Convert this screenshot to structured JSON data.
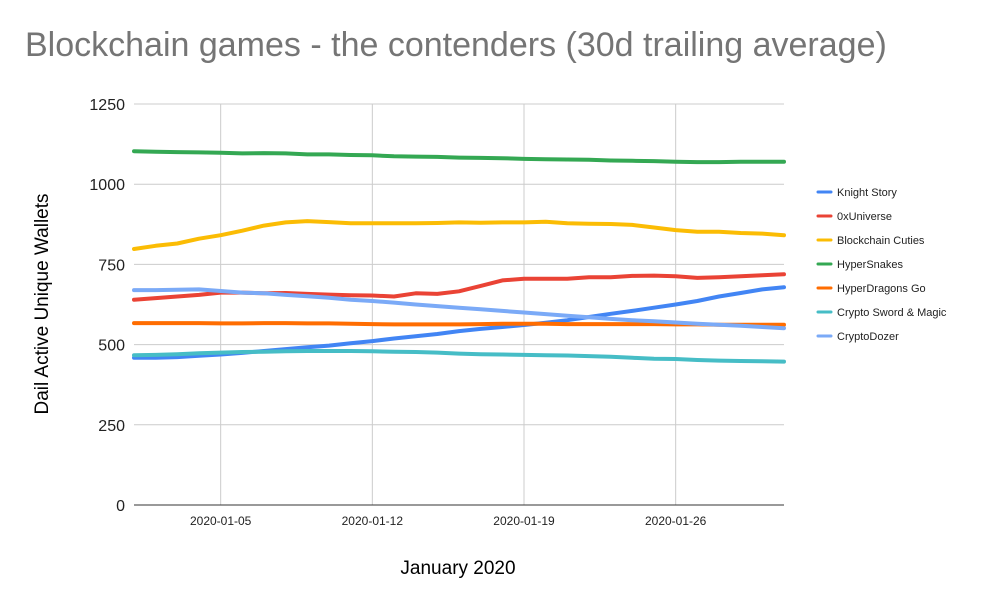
{
  "chart_data": {
    "type": "line",
    "title": "Blockchain games - the contenders (30d trailing average)",
    "xlabel": "January 2020",
    "ylabel": "Dail Active Unique Wallets",
    "ylim": [
      0,
      1250
    ],
    "yticks": [
      0,
      250,
      500,
      750,
      1000,
      1250
    ],
    "xlim": [
      "2020-01-01",
      "2020-01-31"
    ],
    "xticks": [
      "2020-01-05",
      "2020-01-12",
      "2020-01-19",
      "2020-01-26"
    ],
    "grid": true,
    "legend_position": "right",
    "x": [
      "2020-01-01",
      "2020-01-02",
      "2020-01-03",
      "2020-01-04",
      "2020-01-05",
      "2020-01-06",
      "2020-01-07",
      "2020-01-08",
      "2020-01-09",
      "2020-01-10",
      "2020-01-11",
      "2020-01-12",
      "2020-01-13",
      "2020-01-14",
      "2020-01-15",
      "2020-01-16",
      "2020-01-17",
      "2020-01-18",
      "2020-01-19",
      "2020-01-20",
      "2020-01-21",
      "2020-01-22",
      "2020-01-23",
      "2020-01-24",
      "2020-01-25",
      "2020-01-26",
      "2020-01-27",
      "2020-01-28",
      "2020-01-29",
      "2020-01-30",
      "2020-01-31"
    ],
    "series": [
      {
        "name": "Knight Story",
        "color": "#4285f4",
        "values": [
          459,
          459,
          461,
          465,
          469,
          474,
          480,
          486,
          492,
          497,
          504,
          511,
          519,
          526,
          533,
          542,
          549,
          555,
          561,
          568,
          576,
          586,
          596,
          605,
          615,
          625,
          636,
          650,
          661,
          672,
          679
        ]
      },
      {
        "name": "0xUniverse",
        "color": "#ea4335",
        "values": [
          640,
          645,
          650,
          655,
          662,
          662,
          660,
          661,
          658,
          656,
          654,
          653,
          650,
          660,
          658,
          666,
          683,
          700,
          705,
          705,
          705,
          710,
          710,
          714,
          715,
          713,
          708,
          710,
          713,
          716,
          719
        ]
      },
      {
        "name": "Blockchain Cuties",
        "color": "#fbbc04",
        "values": [
          798,
          808,
          815,
          830,
          841,
          855,
          871,
          881,
          885,
          882,
          878,
          878,
          878,
          878,
          879,
          881,
          880,
          881,
          881,
          883,
          878,
          877,
          876,
          873,
          865,
          857,
          852,
          852,
          848,
          846,
          841
        ]
      },
      {
        "name": "HyperSnakes",
        "color": "#34a853",
        "values": [
          1103,
          1101,
          1100,
          1099,
          1098,
          1096,
          1097,
          1096,
          1093,
          1093,
          1091,
          1090,
          1087,
          1086,
          1085,
          1083,
          1082,
          1081,
          1079,
          1078,
          1077,
          1076,
          1074,
          1073,
          1072,
          1070,
          1069,
          1069,
          1070,
          1070,
          1070
        ]
      },
      {
        "name": "HyperDragons Go",
        "color": "#ff6d01",
        "values": [
          567,
          567,
          567,
          567,
          566,
          566,
          567,
          567,
          566,
          566,
          565,
          564,
          563,
          563,
          563,
          563,
          564,
          565,
          565,
          565,
          564,
          564,
          564,
          564,
          564,
          563,
          563,
          562,
          562,
          562,
          562
        ]
      },
      {
        "name": "Crypto Sword & Magic",
        "color": "#46bdc6",
        "values": [
          467,
          468,
          470,
          473,
          475,
          477,
          478,
          479,
          480,
          480,
          480,
          479,
          478,
          477,
          475,
          472,
          470,
          469,
          468,
          467,
          466,
          464,
          462,
          459,
          456,
          455,
          452,
          450,
          449,
          448,
          447
        ]
      },
      {
        "name": "CryptoDozer",
        "color": "#7baaf7",
        "values": [
          670,
          670,
          671,
          672,
          667,
          662,
          660,
          655,
          651,
          646,
          640,
          636,
          631,
          625,
          620,
          615,
          610,
          605,
          600,
          595,
          590,
          585,
          580,
          576,
          573,
          569,
          565,
          562,
          559,
          555,
          551
        ]
      }
    ]
  }
}
